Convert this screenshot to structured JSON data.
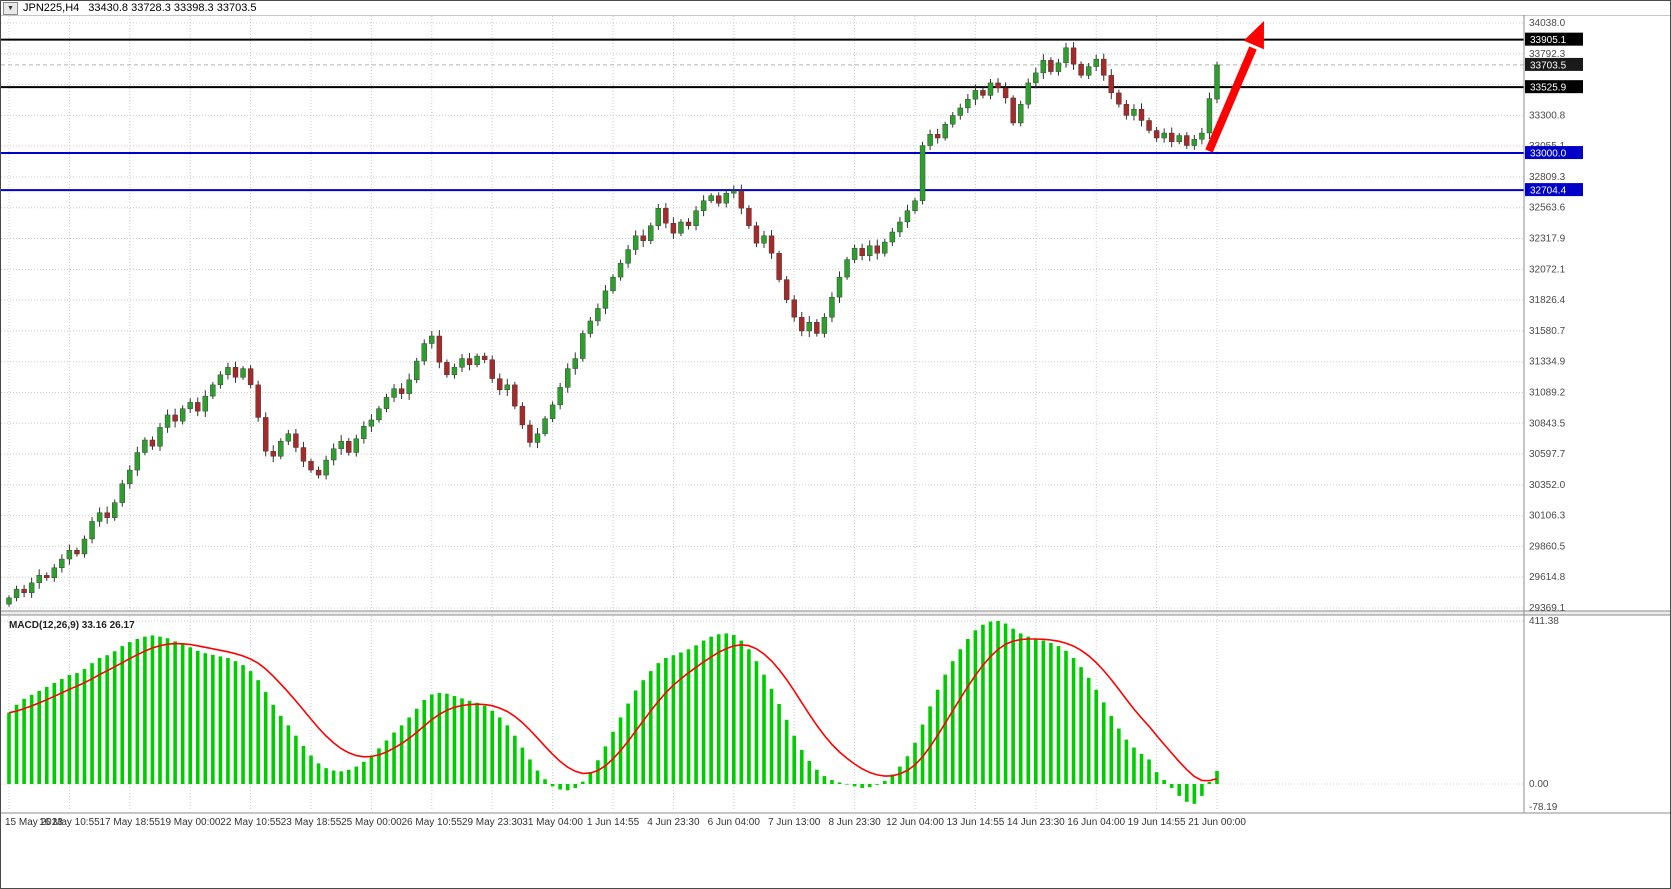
{
  "window": {
    "menu_icon": "▼",
    "title_symbol": "JPN225,H4",
    "title_ohlc": "33430.8 33728.3 33398.3 33703.5"
  },
  "colors": {
    "bull": "#2E9E2E",
    "bear": "#A52A2A",
    "wick": "#303030",
    "hist": "#00CD00",
    "signal": "#FF0000",
    "grid": "#CDCDCD",
    "frame": "#8C8C8C",
    "axis_text": "#4A4A4A",
    "time_text": "#333333",
    "black_line": "#000000",
    "blue_line": "#0000C8",
    "bid_line": "#B4B4B4"
  },
  "annotations": {
    "arrow": {
      "color": "#FF0000",
      "direction": "up-right"
    }
  },
  "chart_data": [
    {
      "type": "candlestick",
      "symbol": "JPN225",
      "timeframe": "H4",
      "title": "JPN225,H4 33430.8 33728.3 33398.3 33703.5",
      "x_labels": [
        "15 May 2023",
        "16 May 10:55",
        "17 May 18:55",
        "19 May 00:00",
        "22 May 10:55",
        "23 May 18:55",
        "25 May 00:00",
        "26 May 10:55",
        "29 May 23:30",
        "31 May 04:00",
        "1 Jun 14:55",
        "4 Jun 23:30",
        "6 Jun 04:00",
        "7 Jun 13:00",
        "8 Jun 23:30",
        "12 Jun 04:00",
        "13 Jun 14:55",
        "14 Jun 23:30",
        "16 Jun 04:00",
        "19 Jun 14:55",
        "21 Jun 00:00"
      ],
      "bars_per_label": 8,
      "first_open": 29400,
      "closes": [
        29450,
        29520,
        29490,
        29570,
        29630,
        29610,
        29690,
        29760,
        29830,
        29800,
        29920,
        30060,
        30130,
        30090,
        30210,
        30360,
        30470,
        30610,
        30710,
        30660,
        30810,
        30910,
        30860,
        30960,
        31010,
        30940,
        31060,
        31150,
        31230,
        31290,
        31210,
        31280,
        31150,
        30890,
        30620,
        30580,
        30700,
        30760,
        30650,
        30540,
        30470,
        30430,
        30550,
        30640,
        30700,
        30610,
        30720,
        30820,
        30870,
        30960,
        31050,
        31120,
        31080,
        31190,
        31340,
        31480,
        31540,
        31330,
        31230,
        31290,
        31360,
        31310,
        31380,
        31350,
        31200,
        31110,
        31150,
        30980,
        30830,
        30690,
        30760,
        30880,
        30990,
        31130,
        31280,
        31360,
        31560,
        31660,
        31760,
        31900,
        32010,
        32120,
        32230,
        32340,
        32300,
        32420,
        32560,
        32440,
        32360,
        32450,
        32420,
        32540,
        32620,
        32660,
        32600,
        32680,
        32700,
        32560,
        32420,
        32280,
        32340,
        32200,
        31990,
        31830,
        31690,
        31580,
        31650,
        31560,
        31690,
        31850,
        32010,
        32150,
        32240,
        32180,
        32260,
        32200,
        32290,
        32370,
        32450,
        32540,
        32620,
        33060,
        33150,
        33120,
        33230,
        33300,
        33360,
        33430,
        33500,
        33460,
        33560,
        33520,
        33440,
        33240,
        33390,
        33560,
        33640,
        33740,
        33650,
        33720,
        33840,
        33710,
        33620,
        33690,
        33750,
        33620,
        33480,
        33390,
        33300,
        33350,
        33260,
        33180,
        33120,
        33160,
        33090,
        33140,
        33060,
        33110,
        33160,
        33435,
        33703.5
      ],
      "last_bar": {
        "open": 33430.8,
        "high": 33728.3,
        "low": 33398.3,
        "close": 33703.5
      },
      "ylim": [
        29369.1,
        34038.0
      ],
      "y_ticks": [
        34038.0,
        33792.3,
        33546.5,
        33300.8,
        33055.1,
        32809.3,
        32563.6,
        32317.9,
        32072.1,
        31826.4,
        31580.7,
        31334.9,
        31089.2,
        30843.5,
        30597.7,
        30352.0,
        30106.3,
        29860.5,
        29614.8,
        29369.1
      ],
      "hlines": [
        {
          "price": 33905.1,
          "label": "33905.1",
          "color": "#000000",
          "width": 2,
          "style": "solid",
          "label_bg": "#000000"
        },
        {
          "price": 33703.5,
          "label": "33703.5",
          "color": "#B4B4B4",
          "width": 1,
          "style": "dash",
          "label_bg": "#1A1A1A"
        },
        {
          "price": 33525.9,
          "label": "33525.9",
          "color": "#000000",
          "width": 2,
          "style": "solid",
          "label_bg": "#000000"
        },
        {
          "price": 33000.0,
          "label": "33000.0",
          "color": "#0000C8",
          "width": 2,
          "style": "solid",
          "label_bg": "#0000C8"
        },
        {
          "price": 32704.4,
          "label": "32704.4",
          "color": "#0000C8",
          "width": 2,
          "style": "solid",
          "label_bg": "#0000C8"
        }
      ],
      "grid": "dotted",
      "legend_position": "none"
    },
    {
      "type": "bar",
      "label": "MACD(12,26,9)",
      "current_values": "33.16 26.17",
      "macd": [
        180,
        200,
        215,
        225,
        235,
        245,
        255,
        265,
        275,
        280,
        290,
        305,
        318,
        325,
        335,
        348,
        358,
        366,
        372,
        375,
        372,
        368,
        360,
        352,
        345,
        336,
        330,
        326,
        322,
        318,
        310,
        300,
        285,
        262,
        232,
        200,
        172,
        148,
        122,
        96,
        72,
        52,
        40,
        34,
        32,
        36,
        44,
        56,
        72,
        90,
        110,
        130,
        148,
        168,
        190,
        212,
        226,
        230,
        228,
        222,
        216,
        210,
        205,
        198,
        185,
        168,
        148,
        122,
        92,
        62,
        34,
        12,
        -6,
        -14,
        -16,
        -10,
        6,
        30,
        60,
        95,
        132,
        168,
        203,
        236,
        262,
        285,
        305,
        318,
        325,
        332,
        340,
        350,
        362,
        372,
        378,
        380,
        376,
        362,
        340,
        310,
        276,
        240,
        202,
        162,
        122,
        86,
        58,
        36,
        20,
        10,
        4,
        0,
        -6,
        -10,
        -8,
        -2,
        8,
        24,
        44,
        70,
        104,
        150,
        196,
        238,
        276,
        310,
        340,
        366,
        388,
        402,
        410,
        411.38,
        405,
        392,
        380,
        372,
        366,
        362,
        356,
        348,
        336,
        318,
        295,
        268,
        238,
        206,
        172,
        140,
        112,
        92,
        76,
        62,
        30,
        10,
        -10,
        -30,
        -45,
        -50,
        -30,
        5,
        33.16
      ],
      "signal_rule": "EMA9 of macd",
      "y_ticks": [
        411.38,
        0.0,
        -78.19
      ]
    }
  ]
}
